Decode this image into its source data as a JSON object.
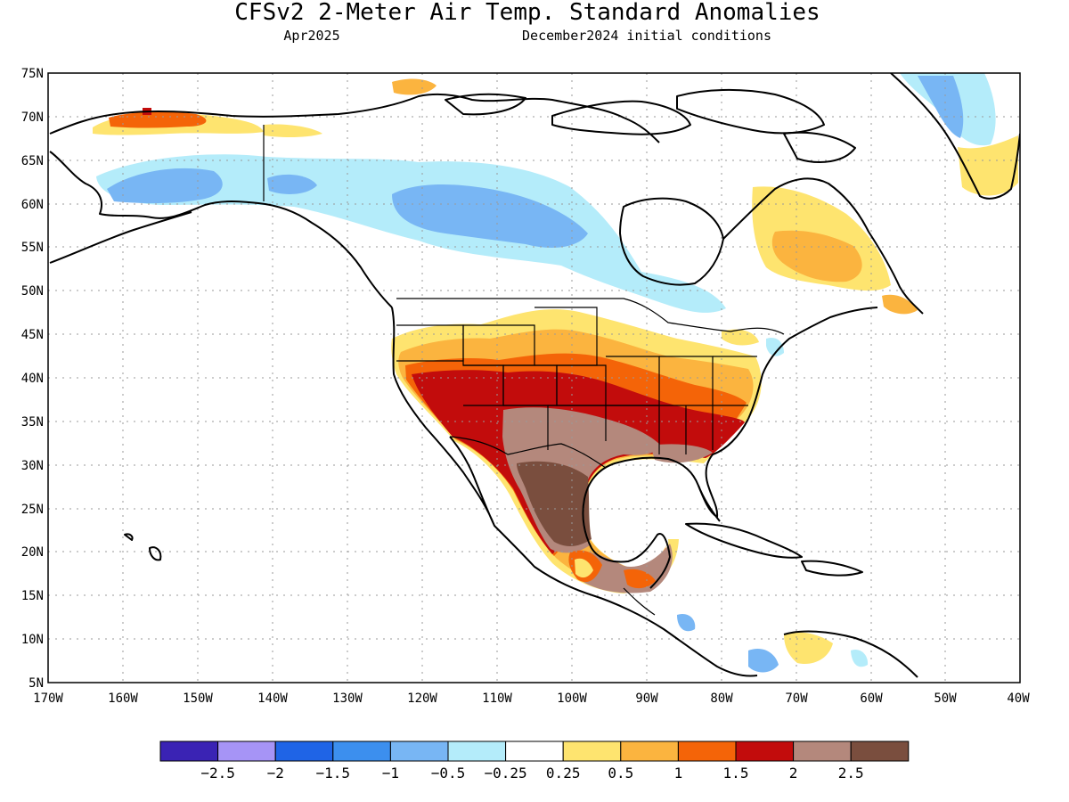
{
  "title": "CFSv2 2-Meter Air Temp. Standard Anomalies",
  "valid_month": "Apr2025",
  "initial_conditions": "December2024 initial conditions",
  "map": {
    "lon_range": [
      -170,
      -40
    ],
    "lat_range": [
      5,
      75
    ],
    "lat_ticks": [
      "75N",
      "70N",
      "65N",
      "60N",
      "55N",
      "50N",
      "45N",
      "40N",
      "35N",
      "30N",
      "25N",
      "20N",
      "15N",
      "10N",
      "5N"
    ],
    "lon_ticks": [
      "170W",
      "160W",
      "150W",
      "140W",
      "130W",
      "120W",
      "110W",
      "100W",
      "90W",
      "80W",
      "70W",
      "60W",
      "50W",
      "40W"
    ],
    "gridlines": "dotted"
  },
  "colorbar": {
    "colors": [
      "#3a23b4",
      "#a694f6",
      "#1f64e6",
      "#3c8fee",
      "#78b6f4",
      "#b4ecfa",
      "#ffffff",
      "#fee46f",
      "#fbb43f",
      "#f46408",
      "#c20c0c",
      "#b4887c",
      "#7a4e3e"
    ],
    "labels": [
      "-2.5",
      "-2",
      "-1.5",
      "-1",
      "-0.5",
      "-0.25",
      "0.25",
      "0.5",
      "1",
      "1.5",
      "2",
      "2.5"
    ]
  }
}
